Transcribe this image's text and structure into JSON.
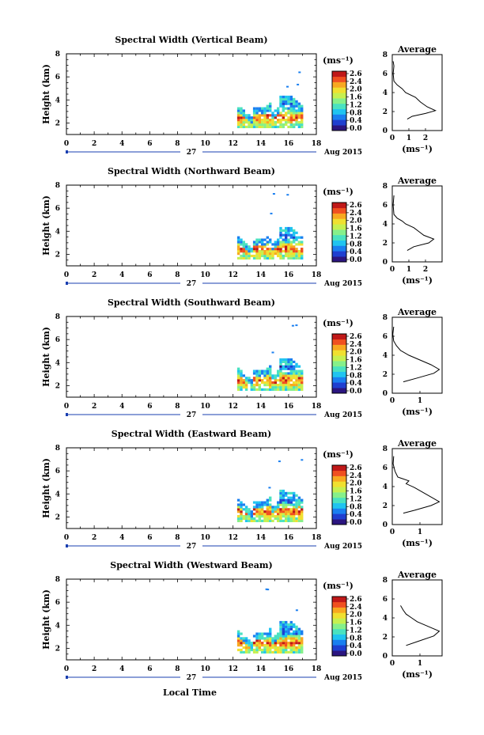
{
  "figure": {
    "xlabel": "Local Time",
    "date_day": "27",
    "date_month": "Aug 2015",
    "colorbar_unit": "(ms⁻¹)",
    "colorbar_ticks": [
      "2.6",
      "2.4",
      "2.0",
      "1.6",
      "1.2",
      "0.8",
      "0.4",
      "0.0"
    ],
    "colormap": [
      "#2b1580",
      "#1f3fd0",
      "#1a7ff0",
      "#20c4f0",
      "#4ae2c0",
      "#86f08a",
      "#c6f050",
      "#f0e030",
      "#f8a820",
      "#f05020",
      "#c01818"
    ]
  },
  "chart_data": [
    {
      "type": "heatmap",
      "title": "Spectral Width (Vertical Beam)",
      "ylabel": "Height (km)",
      "xlim": [
        0,
        18
      ],
      "xticks": [
        "0",
        "2",
        "4",
        "6",
        "8",
        "10",
        "12",
        "14",
        "16",
        "18"
      ],
      "ylim": [
        1,
        8
      ],
      "yticks": [
        "2",
        "4",
        "6",
        "8"
      ],
      "profile": {
        "title": "Average",
        "xlabel": "(ms⁻¹)",
        "xlim": [
          0,
          3
        ],
        "xticks": [
          "0",
          "1",
          "2"
        ],
        "ylim": [
          0,
          8
        ],
        "yticks": [
          "0",
          "2",
          "4",
          "6",
          "8"
        ],
        "points": [
          [
            0.9,
            1.2
          ],
          [
            1.2,
            1.5
          ],
          [
            2.0,
            1.8
          ],
          [
            2.6,
            2.1
          ],
          [
            2.1,
            2.5
          ],
          [
            1.7,
            3.0
          ],
          [
            1.4,
            3.5
          ],
          [
            0.8,
            4.0
          ],
          [
            0.6,
            4.4
          ],
          [
            0.3,
            4.8
          ],
          [
            0.1,
            5.2
          ],
          [
            0.05,
            6.0
          ],
          [
            0.1,
            6.8
          ],
          [
            0.05,
            7.3
          ]
        ]
      }
    },
    {
      "type": "heatmap",
      "title": "Spectral Width (Northward Beam)",
      "ylabel": "Height (km)",
      "xlim": [
        0,
        18
      ],
      "xticks": [
        "0",
        "2",
        "4",
        "6",
        "8",
        "10",
        "12",
        "14",
        "16",
        "18"
      ],
      "ylim": [
        1,
        8
      ],
      "yticks": [
        "2",
        "4",
        "6",
        "8"
      ],
      "profile": {
        "title": "Average",
        "xlabel": "(ms⁻¹)",
        "xlim": [
          0,
          3
        ],
        "xticks": [
          "0",
          "1",
          "2"
        ],
        "ylim": [
          0,
          8
        ],
        "yticks": [
          "0",
          "2",
          "4",
          "6",
          "8"
        ],
        "points": [
          [
            0.9,
            1.2
          ],
          [
            1.3,
            1.6
          ],
          [
            2.2,
            2.0
          ],
          [
            2.5,
            2.4
          ],
          [
            1.9,
            2.8
          ],
          [
            1.6,
            3.2
          ],
          [
            1.3,
            3.6
          ],
          [
            0.8,
            4.0
          ],
          [
            0.6,
            4.3
          ],
          [
            0.3,
            4.6
          ],
          [
            0.1,
            5.0
          ],
          [
            0.05,
            6.0
          ],
          [
            0.1,
            7.0
          ]
        ]
      }
    },
    {
      "type": "heatmap",
      "title": "Spectral Width (Southward Beam)",
      "ylabel": "Height (km)",
      "xlim": [
        0,
        18
      ],
      "xticks": [
        "0",
        "2",
        "4",
        "6",
        "8",
        "10",
        "12",
        "14",
        "16",
        "18"
      ],
      "ylim": [
        1,
        8
      ],
      "yticks": [
        "2",
        "4",
        "6",
        "8"
      ],
      "profile": {
        "title": "Average",
        "xlabel": "(ms⁻¹)",
        "xlim": [
          0,
          1.8
        ],
        "xticks": [
          "0",
          "1"
        ],
        "ylim": [
          0,
          8
        ],
        "yticks": [
          "0",
          "2",
          "4",
          "6",
          "8"
        ],
        "points": [
          [
            0.4,
            1.2
          ],
          [
            0.9,
            1.6
          ],
          [
            1.5,
            2.1
          ],
          [
            1.7,
            2.5
          ],
          [
            1.4,
            3.0
          ],
          [
            1.0,
            3.5
          ],
          [
            0.6,
            4.0
          ],
          [
            0.3,
            4.5
          ],
          [
            0.15,
            5.0
          ],
          [
            0.05,
            5.5
          ],
          [
            0.02,
            6.2
          ],
          [
            0.05,
            7.0
          ]
        ]
      }
    },
    {
      "type": "heatmap",
      "title": "Spectral Width (Eastward Beam)",
      "ylabel": "Height (km)",
      "xlim": [
        0,
        18
      ],
      "xticks": [
        "0",
        "2",
        "4",
        "6",
        "8",
        "10",
        "12",
        "14",
        "16",
        "18"
      ],
      "ylim": [
        1,
        8
      ],
      "yticks": [
        "2",
        "4",
        "6",
        "8"
      ],
      "profile": {
        "title": "Average",
        "xlabel": "(ms⁻¹)",
        "xlim": [
          0,
          1.8
        ],
        "xticks": [
          "0",
          "1"
        ],
        "ylim": [
          0,
          8
        ],
        "yticks": [
          "0",
          "2",
          "4",
          "6",
          "8"
        ],
        "points": [
          [
            0.4,
            1.2
          ],
          [
            0.8,
            1.5
          ],
          [
            1.4,
            2.0
          ],
          [
            1.7,
            2.4
          ],
          [
            1.4,
            2.9
          ],
          [
            1.1,
            3.4
          ],
          [
            0.8,
            3.9
          ],
          [
            0.5,
            4.3
          ],
          [
            0.6,
            4.6
          ],
          [
            0.2,
            5.0
          ],
          [
            0.1,
            5.6
          ],
          [
            0.03,
            6.4
          ],
          [
            0.05,
            7.2
          ]
        ]
      }
    },
    {
      "type": "heatmap",
      "title": "Spectral Width (Westward Beam)",
      "ylabel": "Height (km)",
      "xlim": [
        0,
        18
      ],
      "xticks": [
        "0",
        "2",
        "4",
        "6",
        "8",
        "10",
        "12",
        "14",
        "16",
        "18"
      ],
      "ylim": [
        1,
        8
      ],
      "yticks": [
        "2",
        "4",
        "6",
        "8"
      ],
      "profile": {
        "title": "Average",
        "xlabel": "(ms⁻¹)",
        "xlim": [
          0,
          1.8
        ],
        "xticks": [
          "0",
          "1"
        ],
        "ylim": [
          0,
          8
        ],
        "yticks": [
          "0",
          "2",
          "4",
          "6",
          "8"
        ],
        "points": [
          [
            0.5,
            1.1
          ],
          [
            0.9,
            1.5
          ],
          [
            1.5,
            2.1
          ],
          [
            1.7,
            2.6
          ],
          [
            1.3,
            3.1
          ],
          [
            0.9,
            3.6
          ],
          [
            0.7,
            4.0
          ],
          [
            0.5,
            4.4
          ],
          [
            0.4,
            4.8
          ],
          [
            0.3,
            5.3
          ]
        ]
      }
    }
  ]
}
